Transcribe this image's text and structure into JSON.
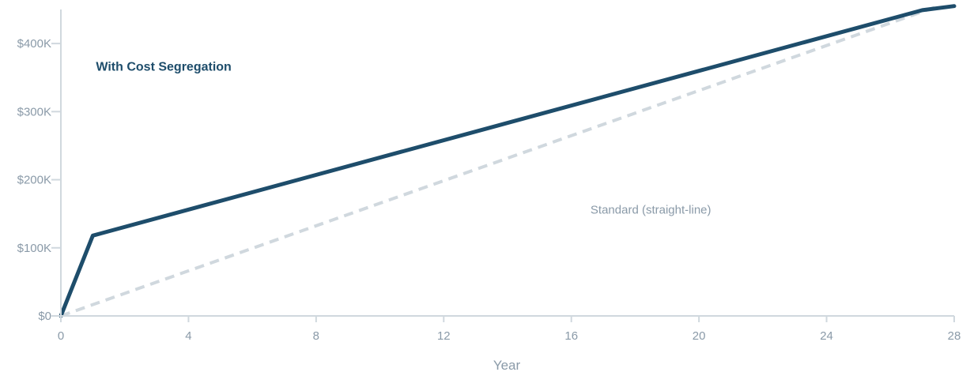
{
  "chart_data": {
    "type": "line",
    "xlabel": "Year",
    "ylabel": "",
    "xlim": [
      0,
      28
    ],
    "ylim": [
      0,
      450000
    ],
    "x_ticks": [
      0,
      4,
      8,
      12,
      16,
      20,
      24,
      28
    ],
    "x_tick_labels": [
      "0",
      "4",
      "8",
      "12",
      "16",
      "20",
      "24",
      "28"
    ],
    "y_ticks": [
      0,
      100000,
      200000,
      300000,
      400000
    ],
    "y_tick_labels": [
      "$0",
      "$100K",
      "$200K",
      "$300K",
      "$400K"
    ],
    "grid": false,
    "series": [
      {
        "name": "With Cost Segregation",
        "style": "solid",
        "color": "#1e4d6b",
        "x": [
          0,
          1,
          27,
          28
        ],
        "y": [
          0,
          118000,
          449000,
          455000
        ]
      },
      {
        "name": "Standard (straight-line)",
        "style": "dashed",
        "color": "#d0d8de",
        "x": [
          0,
          27.5
        ],
        "y": [
          0,
          455000
        ]
      }
    ],
    "annotations": [
      {
        "text": "With Cost Segregation",
        "series": 0,
        "x": 1.1,
        "y": 360000
      },
      {
        "text": "Standard (straight-line)",
        "series": 1,
        "x": 16.6,
        "y": 150000
      }
    ],
    "axis_color": "#d0d8de",
    "text_color": "#8a9aa8"
  }
}
